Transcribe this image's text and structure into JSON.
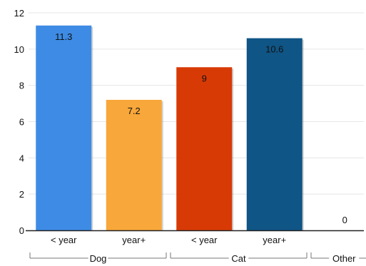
{
  "colors": {
    "grid": "#e6e6e6",
    "axis": "#222222",
    "bracket": "#777777"
  },
  "chart_data": {
    "type": "bar",
    "title": "",
    "xlabel": "",
    "ylabel": "",
    "ylim": [
      0,
      12
    ],
    "yticks": [
      0,
      2,
      4,
      6,
      8,
      10,
      12
    ],
    "grid": true,
    "legend": "none",
    "bars": [
      {
        "group": "Dog",
        "category": "< year",
        "value": 11.3,
        "label": "11.3",
        "color": "#3d8be4"
      },
      {
        "group": "Dog",
        "category": "year+",
        "value": 7.2,
        "label": "7.2",
        "color": "#f8a73a"
      },
      {
        "group": "Cat",
        "category": "< year",
        "value": 9,
        "label": "9",
        "color": "#d83a06"
      },
      {
        "group": "Cat",
        "category": "year+",
        "value": 10.6,
        "label": "10.6",
        "color": "#0f5585"
      },
      {
        "group": "Other",
        "category": "",
        "value": 0,
        "label": "0",
        "color": "#888888"
      }
    ],
    "groups": [
      "Dog",
      "Cat",
      "Other"
    ]
  }
}
